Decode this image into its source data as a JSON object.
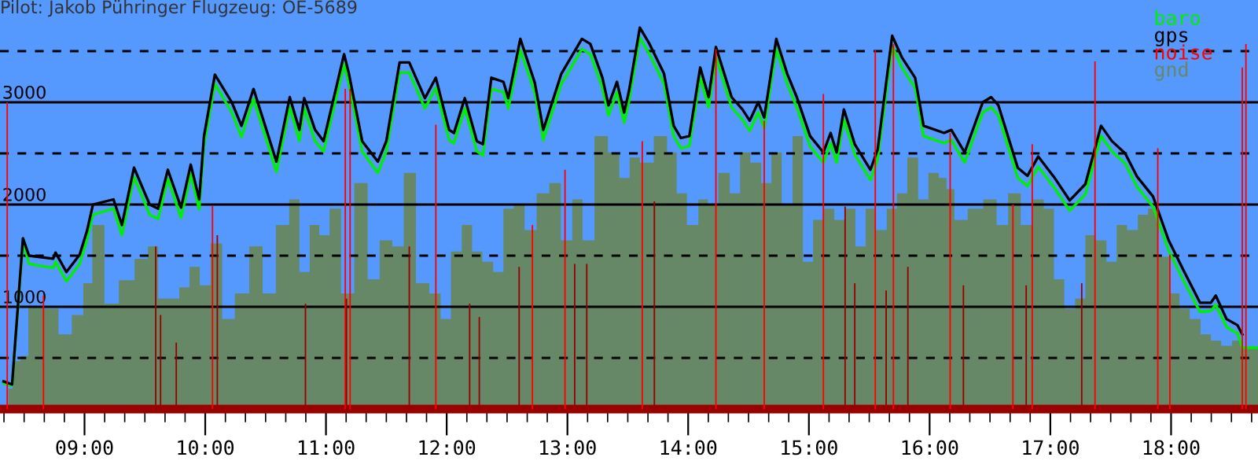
{
  "chart_data": {
    "type": "line",
    "title": "Pilot: Jakob Pühringer Flugzeug: OE-5689",
    "xlim": [
      8.3,
      18.72
    ],
    "ylim": [
      0,
      4000
    ],
    "xticks": [
      {
        "value": 8.333,
        "label": null
      },
      {
        "value": 8.5,
        "label": null
      },
      {
        "value": 8.667,
        "label": null
      },
      {
        "value": 8.833,
        "label": null
      },
      {
        "value": 9,
        "label": "09:00"
      },
      {
        "value": 9.167,
        "label": null
      },
      {
        "value": 9.333,
        "label": null
      },
      {
        "value": 9.5,
        "label": null
      },
      {
        "value": 9.667,
        "label": null
      },
      {
        "value": 9.833,
        "label": null
      },
      {
        "value": 10,
        "label": "10:00"
      },
      {
        "value": 10.167,
        "label": null
      },
      {
        "value": 10.333,
        "label": null
      },
      {
        "value": 10.5,
        "label": null
      },
      {
        "value": 10.667,
        "label": null
      },
      {
        "value": 10.833,
        "label": null
      },
      {
        "value": 11,
        "label": "11:00"
      },
      {
        "value": 11.167,
        "label": null
      },
      {
        "value": 11.333,
        "label": null
      },
      {
        "value": 11.5,
        "label": null
      },
      {
        "value": 11.667,
        "label": null
      },
      {
        "value": 11.833,
        "label": null
      },
      {
        "value": 12,
        "label": "12:00"
      },
      {
        "value": 12.167,
        "label": null
      },
      {
        "value": 12.333,
        "label": null
      },
      {
        "value": 12.5,
        "label": null
      },
      {
        "value": 12.667,
        "label": null
      },
      {
        "value": 12.833,
        "label": null
      },
      {
        "value": 13,
        "label": "13:00"
      },
      {
        "value": 13.167,
        "label": null
      },
      {
        "value": 13.333,
        "label": null
      },
      {
        "value": 13.5,
        "label": null
      },
      {
        "value": 13.667,
        "label": null
      },
      {
        "value": 13.833,
        "label": null
      },
      {
        "value": 14,
        "label": "14:00"
      },
      {
        "value": 14.167,
        "label": null
      },
      {
        "value": 14.333,
        "label": null
      },
      {
        "value": 14.5,
        "label": null
      },
      {
        "value": 14.667,
        "label": null
      },
      {
        "value": 14.833,
        "label": null
      },
      {
        "value": 15,
        "label": "15:00"
      },
      {
        "value": 15.167,
        "label": null
      },
      {
        "value": 15.333,
        "label": null
      },
      {
        "value": 15.5,
        "label": null
      },
      {
        "value": 15.667,
        "label": null
      },
      {
        "value": 15.833,
        "label": null
      },
      {
        "value": 16,
        "label": "16:00"
      },
      {
        "value": 16.167,
        "label": null
      },
      {
        "value": 16.333,
        "label": null
      },
      {
        "value": 16.5,
        "label": null
      },
      {
        "value": 16.667,
        "label": null
      },
      {
        "value": 16.833,
        "label": null
      },
      {
        "value": 17,
        "label": "17:00"
      },
      {
        "value": 17.167,
        "label": null
      },
      {
        "value": 17.333,
        "label": null
      },
      {
        "value": 17.5,
        "label": null
      },
      {
        "value": 17.667,
        "label": null
      },
      {
        "value": 17.833,
        "label": null
      },
      {
        "value": 18,
        "label": "18:00"
      },
      {
        "value": 18.167,
        "label": null
      },
      {
        "value": 18.333,
        "label": null
      },
      {
        "value": 18.5,
        "label": null
      },
      {
        "value": 18.667,
        "label": null
      }
    ],
    "yticks": [
      {
        "value": 500,
        "label": null
      },
      1000,
      {
        "value": 1500,
        "label": null
      },
      2000,
      {
        "value": 2500,
        "label": null
      },
      3000,
      {
        "value": 3500,
        "label": null
      }
    ],
    "grid": "y",
    "legend": "top right",
    "series": [
      {
        "name": "baro",
        "color": "#00ee00",
        "x": [
          8.33,
          8.4,
          8.49,
          8.54,
          8.74,
          8.76,
          8.85,
          8.96,
          9.02,
          9.07,
          9.24,
          9.31,
          9.41,
          9.54,
          9.61,
          9.69,
          9.8,
          9.88,
          9.95,
          9.99,
          10.08,
          10.22,
          10.3,
          10.4,
          10.59,
          10.7,
          10.78,
          10.82,
          10.91,
          10.98,
          11.15,
          11.19,
          11.3,
          11.43,
          11.5,
          11.61,
          11.69,
          11.82,
          11.91,
          12.02,
          12.06,
          12.15,
          12.25,
          12.3,
          12.37,
          12.47,
          12.51,
          12.61,
          12.73,
          12.8,
          12.95,
          13.12,
          13.19,
          13.29,
          13.34,
          13.41,
          13.47,
          13.51,
          13.6,
          13.68,
          13.8,
          13.88,
          13.94,
          14.01,
          14.1,
          14.17,
          14.23,
          14.36,
          14.45,
          14.51,
          14.58,
          14.63,
          14.73,
          14.82,
          14.9,
          15.01,
          15.12,
          15.18,
          15.23,
          15.29,
          15.38,
          15.51,
          15.57,
          15.69,
          15.77,
          15.88,
          15.95,
          16.12,
          16.18,
          16.29,
          16.44,
          16.51,
          16.57,
          16.73,
          16.81,
          16.9,
          17.03,
          17.16,
          17.29,
          17.42,
          17.51,
          17.62,
          17.72,
          17.85,
          17.98,
          18.11,
          18.24,
          18.33,
          18.37,
          18.46,
          18.55,
          18.59,
          18.72
        ],
        "values": [
          250,
          230,
          1640,
          1420,
          1380,
          1440,
          1250,
          1420,
          1650,
          1900,
          1960,
          1700,
          2270,
          1900,
          1860,
          2250,
          1870,
          2300,
          1950,
          2580,
          3180,
          2900,
          2660,
          3030,
          2320,
          2950,
          2620,
          2940,
          2620,
          2520,
          3370,
          3180,
          2520,
          2310,
          2520,
          3290,
          3290,
          2940,
          3140,
          2630,
          2600,
          2940,
          2520,
          2480,
          3130,
          3100,
          2940,
          3510,
          3090,
          2630,
          3180,
          3520,
          3470,
          3140,
          2870,
          3100,
          2800,
          3010,
          3630,
          3470,
          3180,
          2670,
          2550,
          2570,
          3240,
          2950,
          3440,
          2950,
          2830,
          2720,
          2900,
          2750,
          3520,
          3180,
          2950,
          2570,
          2410,
          2600,
          2410,
          2830,
          2490,
          2240,
          2440,
          3550,
          3340,
          3140,
          2670,
          2600,
          2630,
          2410,
          2900,
          2950,
          2870,
          2260,
          2180,
          2370,
          2170,
          1940,
          2100,
          2670,
          2520,
          2400,
          2170,
          1980,
          1550,
          1240,
          950,
          960,
          1020,
          800,
          740,
          600,
          600
        ]
      },
      {
        "name": "gps",
        "color": "#000000",
        "x": [
          8.33,
          8.4,
          8.49,
          8.54,
          8.74,
          8.76,
          8.85,
          8.96,
          9.02,
          9.07,
          9.24,
          9.31,
          9.41,
          9.54,
          9.61,
          9.69,
          9.8,
          9.88,
          9.95,
          9.99,
          10.08,
          10.22,
          10.3,
          10.4,
          10.59,
          10.7,
          10.78,
          10.82,
          10.91,
          10.98,
          11.15,
          11.19,
          11.3,
          11.43,
          11.5,
          11.61,
          11.69,
          11.82,
          11.91,
          12.02,
          12.06,
          12.15,
          12.25,
          12.3,
          12.37,
          12.47,
          12.51,
          12.61,
          12.73,
          12.8,
          12.95,
          13.12,
          13.19,
          13.29,
          13.34,
          13.41,
          13.47,
          13.51,
          13.6,
          13.68,
          13.8,
          13.88,
          13.94,
          14.01,
          14.1,
          14.17,
          14.23,
          14.36,
          14.45,
          14.51,
          14.58,
          14.63,
          14.73,
          14.82,
          14.9,
          15.01,
          15.12,
          15.18,
          15.23,
          15.29,
          15.38,
          15.51,
          15.57,
          15.69,
          15.77,
          15.88,
          15.95,
          16.12,
          16.18,
          16.29,
          16.44,
          16.51,
          16.57,
          16.73,
          16.81,
          16.9,
          17.03,
          17.16,
          17.29,
          17.42,
          17.51,
          17.62,
          17.72,
          17.85,
          17.98,
          18.11,
          18.24,
          18.33,
          18.37,
          18.46,
          18.55,
          18.59
        ],
        "values": [
          270,
          240,
          1670,
          1500,
          1470,
          1530,
          1340,
          1510,
          1740,
          2000,
          2050,
          1800,
          2360,
          2000,
          1960,
          2340,
          1970,
          2390,
          2050,
          2670,
          3270,
          3000,
          2770,
          3130,
          2420,
          3050,
          2730,
          3040,
          2730,
          2620,
          3470,
          3280,
          2620,
          2420,
          2620,
          3390,
          3390,
          3040,
          3240,
          2730,
          2700,
          3040,
          2620,
          2590,
          3240,
          3200,
          3040,
          3620,
          3190,
          2730,
          3280,
          3620,
          3570,
          3240,
          2970,
          3200,
          2900,
          3110,
          3730,
          3570,
          3280,
          2770,
          2650,
          2670,
          3340,
          3050,
          3540,
          3050,
          2930,
          2820,
          3000,
          2850,
          3620,
          3280,
          3050,
          2670,
          2510,
          2700,
          2510,
          2930,
          2590,
          2340,
          2540,
          3650,
          3440,
          3240,
          2770,
          2700,
          2730,
          2510,
          3000,
          3050,
          2970,
          2360,
          2280,
          2470,
          2270,
          2040,
          2200,
          2770,
          2620,
          2500,
          2270,
          2080,
          1650,
          1340,
          1040,
          1040,
          1110,
          880,
          820,
          730
        ]
      },
      {
        "name": "noise",
        "type": "bar",
        "color": "#ff0000",
        "x": [
          8.36,
          8.66,
          9.59,
          9.63,
          9.76,
          10.06,
          10.1,
          10.83,
          11.16,
          11.17,
          11.2,
          11.69,
          11.91,
          12.19,
          12.27,
          12.6,
          12.71,
          12.98,
          13.06,
          13.16,
          13.62,
          13.72,
          14.23,
          14.63,
          15.12,
          15.3,
          15.38,
          15.55,
          15.64,
          15.7,
          15.82,
          16.17,
          16.28,
          16.69,
          16.8,
          16.85,
          17.26,
          17.37,
          17.89,
          17.99,
          18.59,
          18.62
        ],
        "values": [
          3000,
          1110,
          1590,
          920,
          650,
          1990,
          1700,
          1030,
          3130,
          1080,
          3130,
          1590,
          2780,
          1030,
          900,
          1390,
          1800,
          2340,
          1420,
          1420,
          2620,
          2030,
          3520,
          2820,
          3080,
          1980,
          1230,
          3510,
          1160,
          3570,
          1390,
          2700,
          1210,
          2000,
          1210,
          2590,
          1230,
          3400,
          2550,
          1510,
          3340,
          3570
        ],
        "colors": [
          "#ff0000",
          "#ff0000",
          "#990000",
          "#990000",
          "#990000",
          "#ff0000",
          "#990000",
          "#990000",
          "#ff0000",
          "#990000",
          "#ff0000",
          "#990000",
          "#ff0000",
          "#990000",
          "#990000",
          "#990000",
          "#ff0000",
          "#ff0000",
          "#990000",
          "#990000",
          "#ff0000",
          "#990000",
          "#ff0000",
          "#ff0000",
          "#ff0000",
          "#990000",
          "#990000",
          "#ff0000",
          "#990000",
          "#ff0000",
          "#990000",
          "#ff0000",
          "#990000",
          "#ff0000",
          "#990000",
          "#ff0000",
          "#990000",
          "#ff0000",
          "#ff0000",
          "#ff0000",
          "#ff0000",
          "#ff0000"
        ]
      },
      {
        "name": "gnd",
        "type": "area",
        "color": "#668866",
        "x": [
          8.37,
          8.44,
          8.5,
          8.57,
          8.74,
          8.83,
          8.96,
          9.02,
          9.11,
          9.22,
          9.35,
          9.48,
          9.57,
          9.65,
          9.74,
          9.83,
          9.91,
          10.0,
          10.09,
          10.19,
          10.3,
          10.43,
          10.52,
          10.65,
          10.74,
          10.82,
          10.91,
          10.98,
          11.08,
          11.17,
          11.3,
          11.39,
          11.5,
          11.6,
          11.69,
          11.8,
          11.91,
          11.99,
          12.08,
          12.17,
          12.25,
          12.34,
          12.43,
          12.51,
          12.6,
          12.69,
          12.8,
          12.9,
          12.99,
          13.09,
          13.16,
          13.29,
          13.38,
          13.48,
          13.55,
          13.65,
          13.78,
          13.87,
          13.94,
          14.04,
          14.13,
          14.2,
          14.3,
          14.39,
          14.47,
          14.56,
          14.65,
          14.73,
          14.82,
          14.91,
          14.99,
          15.08,
          15.17,
          15.25,
          15.34,
          15.43,
          15.51,
          15.6,
          15.69,
          15.77,
          15.86,
          15.95,
          16.03,
          16.12,
          16.16,
          16.25,
          16.38,
          16.51,
          16.6,
          16.7,
          16.81,
          16.9,
          16.99,
          17.07,
          17.16,
          17.25,
          17.33,
          17.42,
          17.51,
          17.59,
          17.68,
          17.77,
          17.85,
          17.94,
          18.03,
          18.11,
          18.2,
          18.29,
          18.37,
          18.46,
          18.55,
          18.63,
          18.72
        ],
        "values": [
          200,
          470,
          520,
          1000,
          980,
          730,
          920,
          1230,
          1800,
          1030,
          1260,
          1470,
          1590,
          1080,
          1080,
          1190,
          1390,
          1210,
          1620,
          880,
          1130,
          1590,
          1130,
          1800,
          2050,
          1340,
          1800,
          1700,
          1960,
          1130,
          2210,
          1270,
          1650,
          1590,
          2310,
          1230,
          1130,
          880,
          1540,
          1800,
          1540,
          1440,
          1340,
          1960,
          2000,
          1750,
          2110,
          2210,
          1650,
          2050,
          1650,
          2670,
          2510,
          2260,
          2460,
          2410,
          2670,
          2510,
          2110,
          1800,
          2050,
          2000,
          2310,
          2110,
          2510,
          2410,
          2210,
          2510,
          2000,
          2670,
          1440,
          1850,
          1960,
          1850,
          1960,
          1590,
          1960,
          1750,
          1960,
          2110,
          2460,
          2050,
          2310,
          2260,
          2150,
          1850,
          1960,
          2050,
          1800,
          2110,
          1800,
          2050,
          1960,
          1270,
          980,
          1080,
          1700,
          1650,
          1440,
          1800,
          1750,
          1900,
          1960,
          1490,
          1130,
          980,
          880,
          730,
          670,
          620,
          670,
          590,
          590
        ]
      }
    ]
  }
}
